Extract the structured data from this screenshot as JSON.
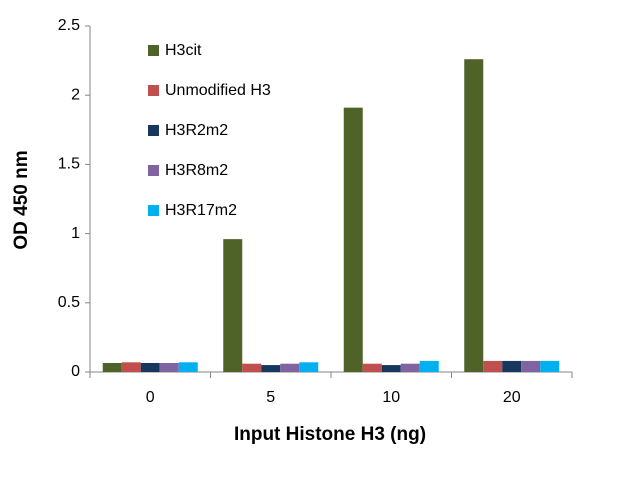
{
  "chart_data": {
    "type": "bar",
    "x_label": "Input Histone H3 (ng)",
    "y_label": "OD 450 nm",
    "categories": [
      "0",
      "5",
      "10",
      "20"
    ],
    "series": [
      {
        "name": "H3cit",
        "color": "#4f6228",
        "values": [
          0.065,
          0.96,
          1.91,
          2.26
        ]
      },
      {
        "name": "Unmodified H3",
        "color": "#c0504d",
        "values": [
          0.07,
          0.06,
          0.06,
          0.08
        ]
      },
      {
        "name": "H3R2m2",
        "color": "#17375e",
        "values": [
          0.065,
          0.05,
          0.05,
          0.08
        ]
      },
      {
        "name": "H3R8m2",
        "color": "#8064a2",
        "values": [
          0.065,
          0.06,
          0.06,
          0.08
        ]
      },
      {
        "name": "H3R17m2",
        "color": "#00b0f0",
        "values": [
          0.07,
          0.07,
          0.08,
          0.08
        ]
      }
    ],
    "ylim": [
      0,
      2.5
    ],
    "yticks": [
      0,
      0.5,
      1,
      1.5,
      2,
      2.5
    ],
    "grid": false,
    "legend": "top-left"
  }
}
